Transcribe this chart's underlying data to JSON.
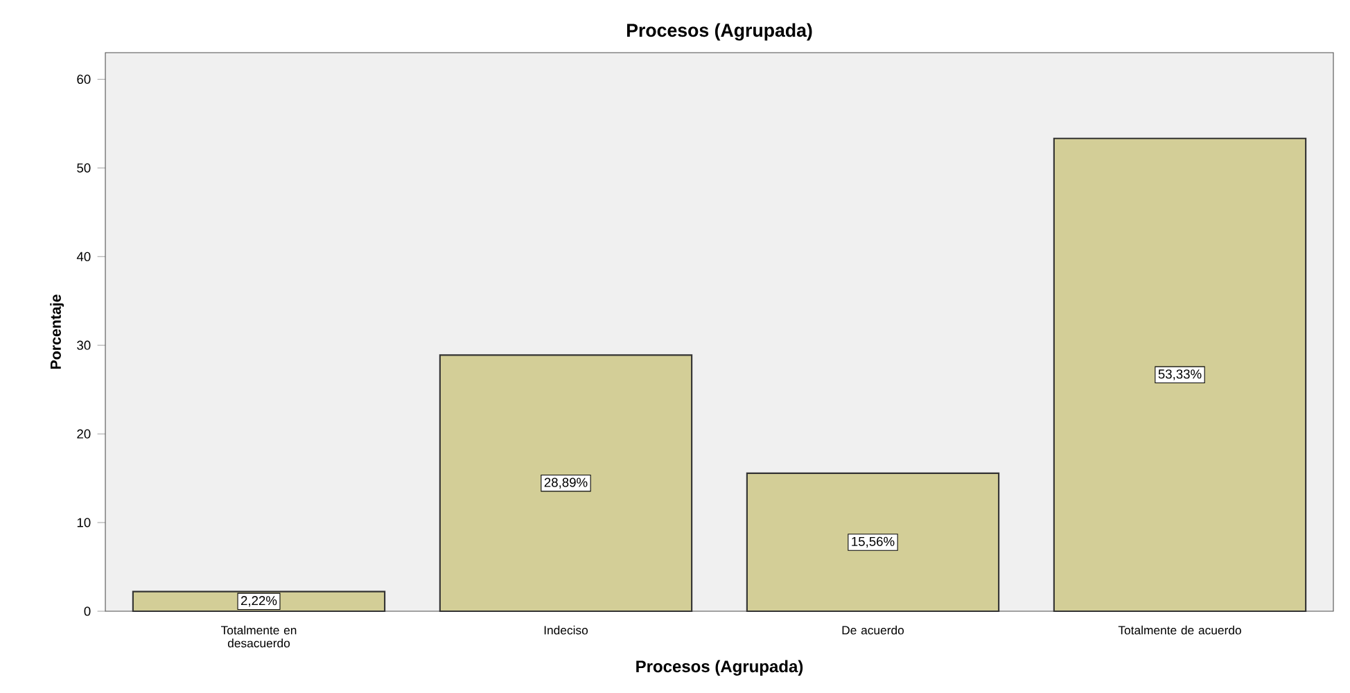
{
  "chart_data": {
    "type": "bar",
    "title": "Procesos (Agrupada)",
    "xlabel": "Procesos (Agrupada)",
    "ylabel": "Porcentaje",
    "categories": [
      "Totalmente en desacuerdo",
      "Indeciso",
      "De acuerdo",
      "Totalmente de acuerdo"
    ],
    "values": [
      2.22,
      28.89,
      15.56,
      53.33
    ],
    "value_labels": [
      "2,22%",
      "28,89%",
      "15,56%",
      "53,33%"
    ],
    "color": "#d3ce97",
    "ylim": [
      0,
      63
    ],
    "yticks": [
      0,
      10,
      20,
      30,
      40,
      50,
      60
    ],
    "grid": false
  }
}
